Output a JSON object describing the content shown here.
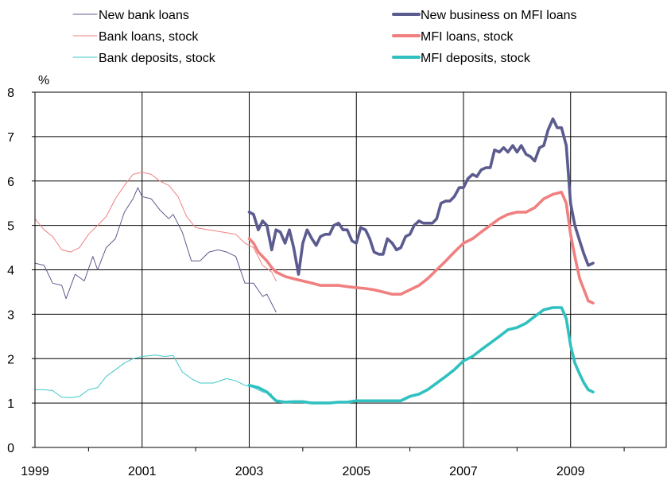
{
  "chart_data": {
    "type": "line",
    "ylabel": "%",
    "ylim": [
      0,
      8
    ],
    "yticks": [
      "0",
      "1",
      "2",
      "3",
      "4",
      "5",
      "6",
      "7",
      "8"
    ],
    "xlim": [
      1999,
      2010.8
    ],
    "xticks": [
      {
        "value": 1999,
        "label": "1999"
      },
      {
        "value": 2001,
        "label": "2001"
      },
      {
        "value": 2003,
        "label": "2003"
      },
      {
        "value": 2005,
        "label": "2005"
      },
      {
        "value": 2007,
        "label": "2007"
      },
      {
        "value": 2009,
        "label": "2009"
      }
    ],
    "grid": true,
    "legend_position": "top",
    "series": [
      {
        "name": "New bank loans",
        "color": "#5b5b8f",
        "weight": "thin",
        "points": [
          [
            1999.0,
            4.15
          ],
          [
            1999.17,
            4.1
          ],
          [
            1999.33,
            3.7
          ],
          [
            1999.5,
            3.65
          ],
          [
            1999.58,
            3.35
          ],
          [
            1999.75,
            3.9
          ],
          [
            1999.92,
            3.75
          ],
          [
            2000.08,
            4.3
          ],
          [
            2000.17,
            4.0
          ],
          [
            2000.33,
            4.5
          ],
          [
            2000.5,
            4.7
          ],
          [
            2000.67,
            5.3
          ],
          [
            2000.83,
            5.6
          ],
          [
            2000.92,
            5.85
          ],
          [
            2001.0,
            5.65
          ],
          [
            2001.17,
            5.6
          ],
          [
            2001.33,
            5.35
          ],
          [
            2001.5,
            5.15
          ],
          [
            2001.58,
            5.25
          ],
          [
            2001.75,
            4.85
          ],
          [
            2001.92,
            4.2
          ],
          [
            2002.08,
            4.2
          ],
          [
            2002.25,
            4.4
          ],
          [
            2002.42,
            4.45
          ],
          [
            2002.58,
            4.4
          ],
          [
            2002.75,
            4.3
          ],
          [
            2002.92,
            3.7
          ],
          [
            2003.08,
            3.7
          ],
          [
            2003.25,
            3.4
          ],
          [
            2003.33,
            3.45
          ],
          [
            2003.5,
            3.05
          ]
        ]
      },
      {
        "name": "Bank loans, stock",
        "color": "#f08080",
        "weight": "thin",
        "points": [
          [
            1999.0,
            5.15
          ],
          [
            1999.17,
            4.9
          ],
          [
            1999.33,
            4.75
          ],
          [
            1999.5,
            4.45
          ],
          [
            1999.67,
            4.4
          ],
          [
            1999.83,
            4.5
          ],
          [
            2000.0,
            4.8
          ],
          [
            2000.17,
            5.0
          ],
          [
            2000.33,
            5.2
          ],
          [
            2000.5,
            5.6
          ],
          [
            2000.67,
            5.9
          ],
          [
            2000.83,
            6.15
          ],
          [
            2001.0,
            6.2
          ],
          [
            2001.17,
            6.15
          ],
          [
            2001.33,
            6.0
          ],
          [
            2001.5,
            5.9
          ],
          [
            2001.67,
            5.65
          ],
          [
            2001.83,
            5.2
          ],
          [
            2002.0,
            4.95
          ],
          [
            2002.25,
            4.9
          ],
          [
            2002.5,
            4.85
          ],
          [
            2002.75,
            4.8
          ],
          [
            2002.92,
            4.6
          ],
          [
            2003.08,
            4.5
          ],
          [
            2003.25,
            4.1
          ],
          [
            2003.42,
            3.95
          ],
          [
            2003.5,
            3.75
          ]
        ]
      },
      {
        "name": "Bank deposits, stock",
        "color": "#40c8c8",
        "weight": "thin",
        "points": [
          [
            1999.0,
            1.3
          ],
          [
            1999.17,
            1.3
          ],
          [
            1999.33,
            1.28
          ],
          [
            1999.5,
            1.13
          ],
          [
            1999.67,
            1.12
          ],
          [
            1999.83,
            1.15
          ],
          [
            2000.0,
            1.3
          ],
          [
            2000.17,
            1.35
          ],
          [
            2000.33,
            1.6
          ],
          [
            2000.5,
            1.75
          ],
          [
            2000.67,
            1.9
          ],
          [
            2000.83,
            2.0
          ],
          [
            2001.0,
            2.05
          ],
          [
            2001.25,
            2.08
          ],
          [
            2001.42,
            2.05
          ],
          [
            2001.58,
            2.07
          ],
          [
            2001.75,
            1.7
          ],
          [
            2001.92,
            1.55
          ],
          [
            2002.08,
            1.45
          ],
          [
            2002.33,
            1.45
          ],
          [
            2002.58,
            1.55
          ],
          [
            2002.75,
            1.5
          ],
          [
            2002.92,
            1.4
          ],
          [
            2003.08,
            1.35
          ],
          [
            2003.25,
            1.25
          ],
          [
            2003.42,
            1.2
          ]
        ]
      },
      {
        "name": "New business on MFI loans",
        "color": "#5b5b8f",
        "weight": "thick",
        "points": [
          [
            2003.0,
            5.3
          ],
          [
            2003.08,
            5.25
          ],
          [
            2003.17,
            4.9
          ],
          [
            2003.25,
            5.1
          ],
          [
            2003.33,
            5.0
          ],
          [
            2003.42,
            4.45
          ],
          [
            2003.5,
            4.9
          ],
          [
            2003.58,
            4.85
          ],
          [
            2003.67,
            4.6
          ],
          [
            2003.75,
            4.9
          ],
          [
            2003.83,
            4.5
          ],
          [
            2003.92,
            3.9
          ],
          [
            2004.0,
            4.6
          ],
          [
            2004.08,
            4.9
          ],
          [
            2004.17,
            4.7
          ],
          [
            2004.25,
            4.55
          ],
          [
            2004.33,
            4.75
          ],
          [
            2004.42,
            4.8
          ],
          [
            2004.5,
            4.8
          ],
          [
            2004.58,
            5.0
          ],
          [
            2004.67,
            5.05
          ],
          [
            2004.75,
            4.9
          ],
          [
            2004.83,
            4.9
          ],
          [
            2004.92,
            4.65
          ],
          [
            2005.0,
            4.6
          ],
          [
            2005.08,
            4.95
          ],
          [
            2005.17,
            4.9
          ],
          [
            2005.25,
            4.7
          ],
          [
            2005.33,
            4.4
          ],
          [
            2005.42,
            4.35
          ],
          [
            2005.5,
            4.35
          ],
          [
            2005.58,
            4.7
          ],
          [
            2005.67,
            4.6
          ],
          [
            2005.75,
            4.45
          ],
          [
            2005.83,
            4.5
          ],
          [
            2005.92,
            4.75
          ],
          [
            2006.0,
            4.8
          ],
          [
            2006.08,
            5.0
          ],
          [
            2006.17,
            5.1
          ],
          [
            2006.25,
            5.05
          ],
          [
            2006.33,
            5.05
          ],
          [
            2006.42,
            5.05
          ],
          [
            2006.5,
            5.15
          ],
          [
            2006.58,
            5.5
          ],
          [
            2006.67,
            5.55
          ],
          [
            2006.75,
            5.55
          ],
          [
            2006.83,
            5.65
          ],
          [
            2006.92,
            5.85
          ],
          [
            2007.0,
            5.85
          ],
          [
            2007.08,
            6.05
          ],
          [
            2007.17,
            6.15
          ],
          [
            2007.25,
            6.1
          ],
          [
            2007.33,
            6.25
          ],
          [
            2007.42,
            6.3
          ],
          [
            2007.5,
            6.3
          ],
          [
            2007.58,
            6.7
          ],
          [
            2007.67,
            6.65
          ],
          [
            2007.75,
            6.75
          ],
          [
            2007.83,
            6.65
          ],
          [
            2007.92,
            6.8
          ],
          [
            2008.0,
            6.65
          ],
          [
            2008.08,
            6.8
          ],
          [
            2008.17,
            6.6
          ],
          [
            2008.25,
            6.55
          ],
          [
            2008.33,
            6.45
          ],
          [
            2008.42,
            6.75
          ],
          [
            2008.5,
            6.8
          ],
          [
            2008.58,
            7.15
          ],
          [
            2008.67,
            7.4
          ],
          [
            2008.75,
            7.2
          ],
          [
            2008.83,
            7.2
          ],
          [
            2008.92,
            6.8
          ],
          [
            2009.0,
            5.5
          ],
          [
            2009.08,
            5.0
          ],
          [
            2009.17,
            4.65
          ],
          [
            2009.25,
            4.35
          ],
          [
            2009.33,
            4.1
          ],
          [
            2009.42,
            4.15
          ]
        ]
      },
      {
        "name": "MFI loans, stock",
        "color": "#f08080",
        "weight": "thick",
        "points": [
          [
            2003.0,
            4.7
          ],
          [
            2003.08,
            4.6
          ],
          [
            2003.17,
            4.4
          ],
          [
            2003.25,
            4.3
          ],
          [
            2003.33,
            4.2
          ],
          [
            2003.42,
            4.05
          ],
          [
            2003.5,
            3.95
          ],
          [
            2003.67,
            3.85
          ],
          [
            2003.83,
            3.8
          ],
          [
            2004.0,
            3.75
          ],
          [
            2004.17,
            3.7
          ],
          [
            2004.33,
            3.65
          ],
          [
            2004.5,
            3.65
          ],
          [
            2004.67,
            3.65
          ],
          [
            2004.83,
            3.62
          ],
          [
            2005.0,
            3.6
          ],
          [
            2005.17,
            3.58
          ],
          [
            2005.33,
            3.55
          ],
          [
            2005.5,
            3.5
          ],
          [
            2005.67,
            3.45
          ],
          [
            2005.83,
            3.45
          ],
          [
            2006.0,
            3.55
          ],
          [
            2006.17,
            3.65
          ],
          [
            2006.33,
            3.8
          ],
          [
            2006.5,
            4.0
          ],
          [
            2006.67,
            4.2
          ],
          [
            2006.83,
            4.4
          ],
          [
            2007.0,
            4.6
          ],
          [
            2007.17,
            4.7
          ],
          [
            2007.33,
            4.85
          ],
          [
            2007.5,
            5.0
          ],
          [
            2007.67,
            5.15
          ],
          [
            2007.83,
            5.25
          ],
          [
            2008.0,
            5.3
          ],
          [
            2008.17,
            5.3
          ],
          [
            2008.33,
            5.4
          ],
          [
            2008.5,
            5.6
          ],
          [
            2008.67,
            5.7
          ],
          [
            2008.83,
            5.75
          ],
          [
            2008.92,
            5.5
          ],
          [
            2009.0,
            4.8
          ],
          [
            2009.08,
            4.3
          ],
          [
            2009.17,
            3.8
          ],
          [
            2009.25,
            3.55
          ],
          [
            2009.33,
            3.3
          ],
          [
            2009.42,
            3.25
          ]
        ]
      },
      {
        "name": "MFI deposits, stock",
        "color": "#30c0c0",
        "weight": "thick",
        "points": [
          [
            2003.0,
            1.4
          ],
          [
            2003.17,
            1.35
          ],
          [
            2003.33,
            1.25
          ],
          [
            2003.5,
            1.05
          ],
          [
            2003.67,
            1.02
          ],
          [
            2003.83,
            1.03
          ],
          [
            2004.0,
            1.03
          ],
          [
            2004.17,
            1.0
          ],
          [
            2004.33,
            1.0
          ],
          [
            2004.5,
            1.0
          ],
          [
            2004.67,
            1.02
          ],
          [
            2004.83,
            1.02
          ],
          [
            2005.0,
            1.05
          ],
          [
            2005.17,
            1.05
          ],
          [
            2005.33,
            1.05
          ],
          [
            2005.5,
            1.05
          ],
          [
            2005.67,
            1.05
          ],
          [
            2005.83,
            1.05
          ],
          [
            2006.0,
            1.15
          ],
          [
            2006.17,
            1.2
          ],
          [
            2006.33,
            1.3
          ],
          [
            2006.5,
            1.45
          ],
          [
            2006.67,
            1.6
          ],
          [
            2006.83,
            1.75
          ],
          [
            2007.0,
            1.95
          ],
          [
            2007.17,
            2.05
          ],
          [
            2007.33,
            2.2
          ],
          [
            2007.5,
            2.35
          ],
          [
            2007.67,
            2.5
          ],
          [
            2007.83,
            2.65
          ],
          [
            2008.0,
            2.7
          ],
          [
            2008.17,
            2.8
          ],
          [
            2008.33,
            2.95
          ],
          [
            2008.5,
            3.1
          ],
          [
            2008.67,
            3.15
          ],
          [
            2008.83,
            3.15
          ],
          [
            2008.92,
            2.9
          ],
          [
            2009.0,
            2.3
          ],
          [
            2009.08,
            1.9
          ],
          [
            2009.17,
            1.65
          ],
          [
            2009.25,
            1.45
          ],
          [
            2009.33,
            1.3
          ],
          [
            2009.42,
            1.25
          ]
        ]
      }
    ]
  }
}
